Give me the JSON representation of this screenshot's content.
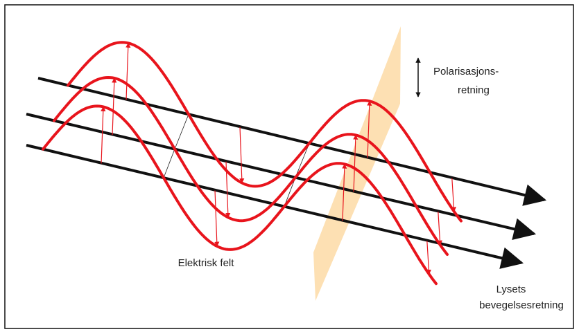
{
  "labels": {
    "polarization": [
      "Polarisasjons-",
      "retning"
    ],
    "electric_field": "Elektrisk felt",
    "propagation": [
      "Lysets",
      "bevegelsesretning"
    ]
  }
}
